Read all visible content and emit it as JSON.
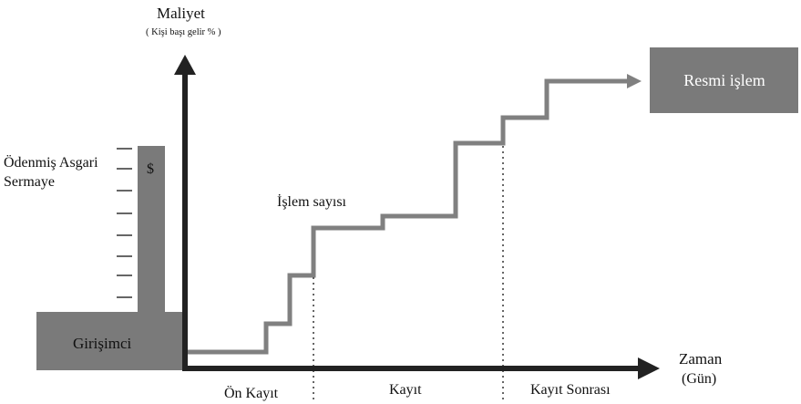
{
  "y_axis": {
    "title": "Maliyet",
    "subtitle": "( Kişi başı gelir % )"
  },
  "x_axis": {
    "title": "Zaman",
    "subtitle": "(Gün)"
  },
  "left_block": {
    "capital_label_line1": "Ödenmiş Asgari",
    "capital_label_line2": "Sermaye",
    "currency_symbol": "$",
    "entrepreneur_label": "Girişimci"
  },
  "step_line": {
    "label": "İşlem sayısı"
  },
  "end_box": {
    "label": "Resmi işlem"
  },
  "phases": [
    "Ön Kayıt",
    "Kayıt",
    "Kayıt Sonrası"
  ],
  "colors": {
    "block_fill": "#7a7a7a",
    "axis": "#222222",
    "step_line": "#808080"
  }
}
